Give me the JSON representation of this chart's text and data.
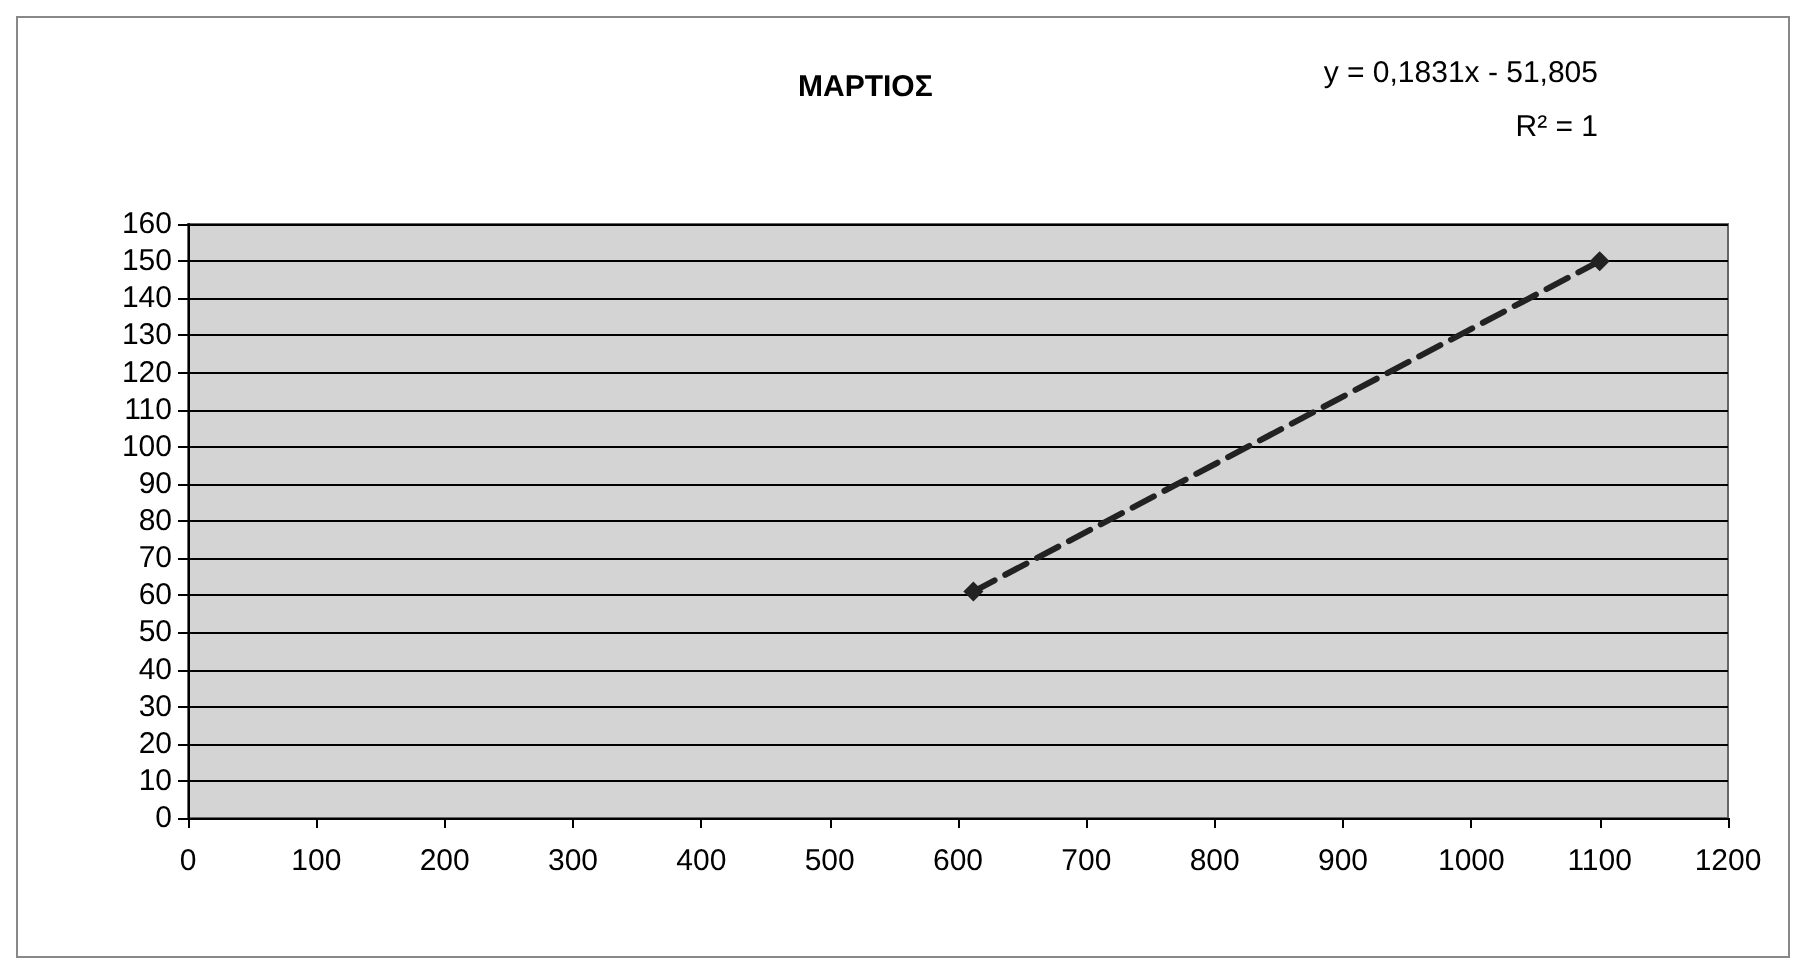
{
  "chart_data": {
    "type": "line",
    "title": "ΜΑΡΤΙΟΣ",
    "annotations": [
      "y = 0,1831x - 51,805",
      "R² = 1"
    ],
    "series": [
      {
        "color": "#222222",
        "x": [
          612,
          1100
        ],
        "values": [
          61,
          150
        ],
        "line_style": "dashed",
        "marker": "diamond"
      }
    ],
    "xlim": [
      0,
      1200
    ],
    "xticks": [
      0,
      100,
      200,
      300,
      400,
      500,
      600,
      700,
      800,
      900,
      1000,
      1100,
      1200
    ],
    "ylim": [
      0,
      160
    ],
    "yticks": [
      0,
      10,
      20,
      30,
      40,
      50,
      60,
      70,
      80,
      90,
      100,
      110,
      120,
      130,
      140,
      150,
      160
    ],
    "grid": "y"
  }
}
